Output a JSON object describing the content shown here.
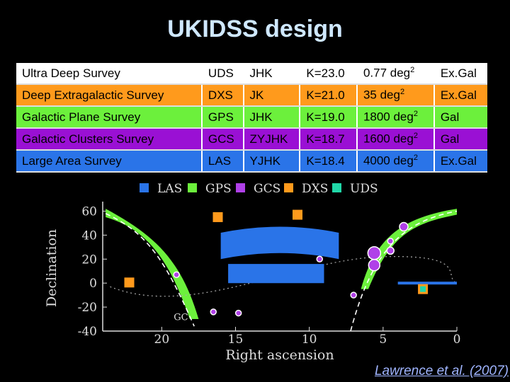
{
  "title": "UKIDSS design",
  "table": {
    "rows": [
      {
        "name": "Ultra Deep Survey",
        "code": "UDS",
        "filters": "JHK",
        "depth": "K=23.0",
        "area": "0.77 deg",
        "area_sup": "2",
        "type": "Ex.Gal",
        "color": "#ffffff"
      },
      {
        "name": "Deep Extragalactic Survey",
        "code": "DXS",
        "filters": "JK",
        "depth": "K=21.0",
        "area": "35 deg",
        "area_sup": "2",
        "type": "Ex.Gal",
        "color": "#ff9a1c"
      },
      {
        "name": "Galactic Plane Survey",
        "code": "GPS",
        "filters": "JHK",
        "depth": "K=19.0",
        "area": "1800 deg",
        "area_sup": "2",
        "type": "Gal",
        "color": "#6cf03c"
      },
      {
        "name": "Galactic Clusters Survey",
        "code": "GCS",
        "filters": "ZYJHK",
        "depth": "K=18.7",
        "area": "1600 deg",
        "area_sup": "2",
        "type": "Gal",
        "color": "#9a10d4"
      },
      {
        "name": "Large Area Survey",
        "code": "LAS",
        "filters": "YJHK",
        "depth": "K=18.4",
        "area": "4000 deg",
        "area_sup": "2",
        "type": "Ex.Gal",
        "color": "#2a74e8"
      }
    ]
  },
  "chart_data": {
    "type": "scatter",
    "xlabel": "Right ascension",
    "ylabel": "Declination",
    "xlim": [
      24,
      0
    ],
    "ylim": [
      -40,
      65
    ],
    "x_ticks": [
      20,
      15,
      10,
      5,
      0
    ],
    "y_ticks": [
      60,
      40,
      20,
      0,
      -20,
      -40
    ],
    "annotation": "GC",
    "legend": [
      {
        "label": "LAS",
        "color": "#2a74e8"
      },
      {
        "label": "GPS",
        "color": "#6cf03c"
      },
      {
        "label": "GCS",
        "color": "#b040e8"
      },
      {
        "label": "DXS",
        "color": "#ff9a1c"
      },
      {
        "label": "UDS",
        "color": "#20d8a8"
      }
    ],
    "dxs_fields": [
      [
        22.2,
        0.5
      ],
      [
        16.2,
        55
      ],
      [
        10.8,
        57
      ],
      [
        2.3,
        -5
      ]
    ],
    "uds_fields": [
      [
        2.3,
        -5
      ]
    ],
    "gcs_clusters": [
      {
        "ra": 16.5,
        "dec": -24,
        "r": 4
      },
      {
        "ra": 19.0,
        "dec": 7,
        "r": 4
      },
      {
        "ra": 14.8,
        "dec": -25,
        "r": 4
      },
      {
        "ra": 9.3,
        "dec": 20,
        "r": 4
      },
      {
        "ra": 5.6,
        "dec": 25,
        "r": 9
      },
      {
        "ra": 5.6,
        "dec": 15,
        "r": 8
      },
      {
        "ra": 4.5,
        "dec": 27,
        "r": 5
      },
      {
        "ra": 4.5,
        "dec": 35,
        "r": 4
      },
      {
        "ra": 3.6,
        "dec": 47,
        "r": 6
      },
      {
        "ra": 7.0,
        "dec": -10,
        "r": 4
      }
    ],
    "las_regions": [
      {
        "ra_start": 16,
        "ra_end": 8,
        "dec_min": 0,
        "dec_max": 42
      },
      {
        "ra_start": 4,
        "ra_end": 0,
        "dec_min": 0,
        "dec_max": 0
      }
    ]
  },
  "credit": "Lawrence et al. (2007)"
}
